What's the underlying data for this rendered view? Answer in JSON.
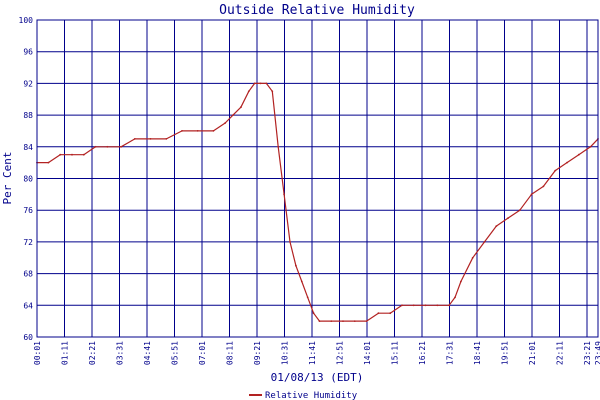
{
  "chart_data": {
    "type": "line",
    "title": "Outside Relative Humidity",
    "xlabel": "01/08/13 (EDT)",
    "ylabel": "Per Cent",
    "ylim": [
      60,
      100
    ],
    "yticks": [
      60,
      64,
      68,
      72,
      76,
      80,
      84,
      88,
      92,
      96,
      100
    ],
    "xlim": [
      "00:01",
      "23:49"
    ],
    "xticks": [
      "00:01",
      "01:11",
      "02:21",
      "03:31",
      "04:41",
      "05:51",
      "07:01",
      "08:11",
      "09:21",
      "10:31",
      "11:41",
      "12:51",
      "14:01",
      "15:11",
      "16:21",
      "17:31",
      "18:41",
      "19:51",
      "21:01",
      "22:11",
      "23:21",
      "23:49"
    ],
    "grid": true,
    "legend_position": "bottom-center",
    "colors": {
      "series": "#b22222",
      "grid": "#00008b",
      "text": "#00008b"
    },
    "series": [
      {
        "name": "Relative Humidity",
        "x": [
          "00:01",
          "00:30",
          "01:00",
          "01:30",
          "02:00",
          "02:30",
          "03:00",
          "03:35",
          "04:10",
          "04:50",
          "05:30",
          "06:10",
          "06:50",
          "07:30",
          "08:00",
          "08:20",
          "08:40",
          "09:00",
          "09:15",
          "09:30",
          "09:45",
          "10:00",
          "10:15",
          "10:30",
          "10:45",
          "11:00",
          "11:15",
          "11:30",
          "11:45",
          "12:00",
          "12:30",
          "13:00",
          "13:30",
          "14:00",
          "14:30",
          "15:00",
          "15:30",
          "16:00",
          "16:30",
          "17:00",
          "17:30",
          "17:45",
          "18:00",
          "18:30",
          "19:00",
          "19:30",
          "20:00",
          "20:30",
          "21:00",
          "21:30",
          "22:00",
          "22:30",
          "23:00",
          "23:30",
          "23:49"
        ],
        "values": [
          82,
          82,
          83,
          83,
          83,
          84,
          84,
          84,
          85,
          85,
          85,
          86,
          86,
          86,
          87,
          88,
          89,
          91,
          92,
          92,
          92,
          91,
          84,
          78,
          72,
          69,
          67,
          65,
          63,
          62,
          62,
          62,
          62,
          62,
          63,
          63,
          64,
          64,
          64,
          64,
          64,
          65,
          67,
          70,
          72,
          74,
          75,
          76,
          78,
          79,
          81,
          82,
          83,
          84,
          85
        ]
      }
    ]
  }
}
